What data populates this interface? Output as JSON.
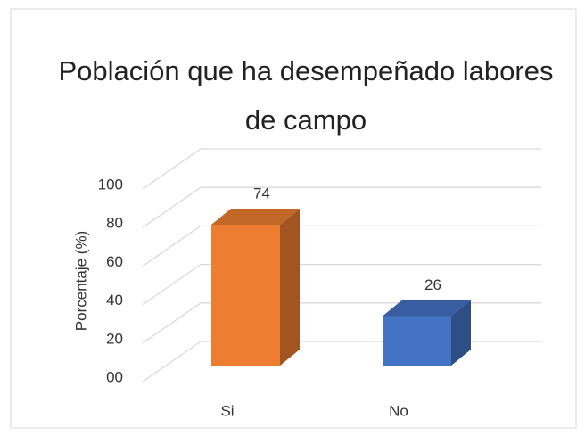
{
  "chart_data": {
    "type": "bar3d",
    "title": "Población que ha desempeñado labores de campo",
    "y_label": "Porcentaje (%)",
    "categories": [
      "Si",
      "No"
    ],
    "values": [
      74,
      26
    ],
    "colors": [
      "#ED7D31",
      "#4472C4"
    ],
    "ylim": [
      0,
      100
    ],
    "yticks": [
      {
        "value": 0,
        "label": "00"
      },
      20,
      40,
      60,
      80,
      100
    ],
    "grid": true
  }
}
